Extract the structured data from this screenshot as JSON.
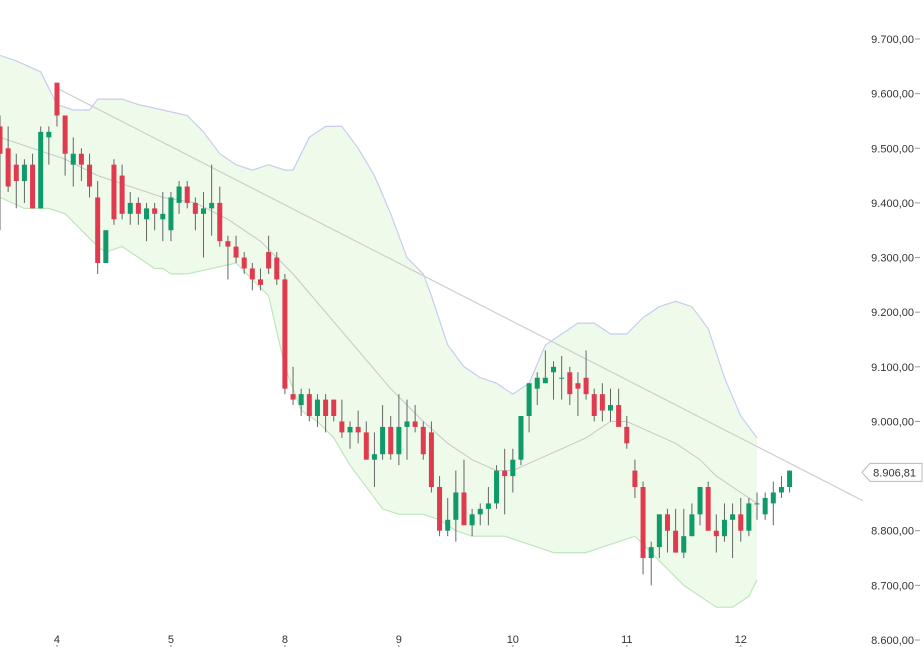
{
  "chart_data": {
    "type": "candlestick",
    "colors": {
      "up": "#109a6a",
      "down": "#e03a4e",
      "band_line": "#c8cdf0",
      "band_fill": "#eefaea",
      "band_edge": "#bfe6bf",
      "mid": "#c8c8c8",
      "trend": "#cfcfcf"
    },
    "y_axis": {
      "ylim": [
        8600,
        9750
      ],
      "ticks": [
        9700,
        9600,
        9500,
        9400,
        9300,
        9200,
        9100,
        9000,
        8900,
        8800,
        8700,
        8600
      ],
      "tick_labels": [
        "9.700,00",
        "9.600,00",
        "9.500,00",
        "9.400,00",
        "9.300,00",
        "9.200,00",
        "9.100,00",
        "9.000,00",
        "8.900,00",
        "8.800,00",
        "8.700,00",
        "8.600,00"
      ]
    },
    "x_axis": {
      "labels": [
        {
          "text": "4",
          "index": 7
        },
        {
          "text": "5",
          "index": 21
        },
        {
          "text": "8",
          "index": 35
        },
        {
          "text": "9",
          "index": 49
        },
        {
          "text": "10",
          "index": 63
        },
        {
          "text": "11",
          "index": 77
        },
        {
          "text": "12",
          "index": 91
        }
      ]
    },
    "last_price": {
      "value": 8906.81,
      "label": "8.906,81"
    },
    "candles": [
      [
        9540,
        9560,
        9350,
        9490
      ],
      [
        9500,
        9540,
        9420,
        9430
      ],
      [
        9470,
        9490,
        9390,
        9440
      ],
      [
        9440,
        9480,
        9400,
        9470
      ],
      [
        9470,
        9490,
        9390,
        9390
      ],
      [
        9390,
        9540,
        9390,
        9530
      ],
      [
        9520,
        9540,
        9470,
        9530
      ],
      [
        9620,
        9620,
        9540,
        9560
      ],
      [
        9560,
        9560,
        9450,
        9490
      ],
      [
        9470,
        9520,
        9430,
        9490
      ],
      [
        9490,
        9500,
        9440,
        9470
      ],
      [
        9470,
        9490,
        9410,
        9430
      ],
      [
        9410,
        9440,
        9270,
        9290
      ],
      [
        9290,
        9350,
        9290,
        9350
      ],
      [
        9470,
        9480,
        9360,
        9370
      ],
      [
        9450,
        9470,
        9370,
        9380
      ],
      [
        9380,
        9420,
        9360,
        9400
      ],
      [
        9400,
        9410,
        9360,
        9380
      ],
      [
        9370,
        9400,
        9330,
        9390
      ],
      [
        9390,
        9400,
        9350,
        9380
      ],
      [
        9370,
        9420,
        9330,
        9380
      ],
      [
        9350,
        9420,
        9330,
        9410
      ],
      [
        9400,
        9440,
        9380,
        9430
      ],
      [
        9430,
        9440,
        9390,
        9400
      ],
      [
        9400,
        9410,
        9350,
        9380
      ],
      [
        9380,
        9420,
        9300,
        9390
      ],
      [
        9390,
        9470,
        9340,
        9400
      ],
      [
        9400,
        9430,
        9320,
        9330
      ],
      [
        9330,
        9340,
        9260,
        9320
      ],
      [
        9320,
        9340,
        9290,
        9300
      ],
      [
        9300,
        9310,
        9270,
        9280
      ],
      [
        9280,
        9290,
        9240,
        9260
      ],
      [
        9260,
        9280,
        9240,
        9250
      ],
      [
        9310,
        9340,
        9270,
        9280
      ],
      [
        9300,
        9310,
        9250,
        9260
      ],
      [
        9260,
        9270,
        9050,
        9060
      ],
      [
        9050,
        9100,
        9030,
        9040
      ],
      [
        9030,
        9060,
        9010,
        9050
      ],
      [
        9050,
        9060,
        9000,
        9010
      ],
      [
        9010,
        9050,
        8990,
        9040
      ],
      [
        9040,
        9050,
        8980,
        9010
      ],
      [
        9040,
        9040,
        9000,
        9010
      ],
      [
        9000,
        9040,
        8970,
        8980
      ],
      [
        8980,
        9000,
        8950,
        8990
      ],
      [
        8990,
        9020,
        8960,
        8980
      ],
      [
        8980,
        9000,
        8940,
        8930
      ],
      [
        8930,
        8980,
        8880,
        8940
      ],
      [
        8940,
        9030,
        8930,
        8990
      ],
      [
        8990,
        9010,
        8930,
        8940
      ],
      [
        8940,
        9050,
        8920,
        8990
      ],
      [
        8990,
        9040,
        8930,
        9000
      ],
      [
        9000,
        9030,
        8980,
        8990
      ],
      [
        8990,
        9000,
        8930,
        8940
      ],
      [
        8980,
        9000,
        8870,
        8880
      ],
      [
        8880,
        8900,
        8790,
        8800
      ],
      [
        8800,
        8860,
        8790,
        8820
      ],
      [
        8820,
        8910,
        8780,
        8870
      ],
      [
        8870,
        8930,
        8820,
        8810
      ],
      [
        8810,
        8840,
        8790,
        8830
      ],
      [
        8830,
        8850,
        8810,
        8840
      ],
      [
        8840,
        8880,
        8810,
        8850
      ],
      [
        8850,
        8920,
        8840,
        8910
      ],
      [
        8910,
        8950,
        8830,
        8900
      ],
      [
        8900,
        8950,
        8870,
        8930
      ],
      [
        8930,
        9010,
        8920,
        9010
      ],
      [
        9010,
        9070,
        8980,
        9070
      ],
      [
        9060,
        9090,
        9030,
        9080
      ],
      [
        9070,
        9130,
        9070,
        9080
      ],
      [
        9090,
        9110,
        9040,
        9100
      ],
      [
        9080,
        9120,
        9040,
        9080
      ],
      [
        9090,
        9100,
        9030,
        9050
      ],
      [
        9070,
        9090,
        9010,
        9060
      ],
      [
        9080,
        9130,
        9040,
        9050
      ],
      [
        9050,
        9060,
        9000,
        9010
      ],
      [
        9050,
        9070,
        9000,
        9020
      ],
      [
        9020,
        9060,
        9000,
        9030
      ],
      [
        9030,
        9060,
        9000,
        8990
      ],
      [
        8990,
        9010,
        8950,
        8960
      ],
      [
        8910,
        8930,
        8860,
        8880
      ],
      [
        8880,
        8890,
        8720,
        8750
      ],
      [
        8750,
        8780,
        8700,
        8770
      ],
      [
        8770,
        8830,
        8750,
        8830
      ],
      [
        8830,
        8840,
        8760,
        8800
      ],
      [
        8800,
        8840,
        8760,
        8760
      ],
      [
        8760,
        8840,
        8750,
        8790
      ],
      [
        8790,
        8850,
        8790,
        8830
      ],
      [
        8830,
        8880,
        8810,
        8880
      ],
      [
        8880,
        8890,
        8800,
        8800
      ],
      [
        8800,
        8830,
        8760,
        8790
      ],
      [
        8790,
        8850,
        8780,
        8820
      ],
      [
        8820,
        8850,
        8750,
        8830
      ],
      [
        8830,
        8860,
        8780,
        8800
      ],
      [
        8800,
        8860,
        8790,
        8850
      ],
      [
        8850,
        8870,
        8820,
        8850
      ],
      [
        8830,
        8870,
        8820,
        8860
      ],
      [
        8850,
        8890,
        8810,
        8870
      ],
      [
        8870,
        8900,
        8860,
        8880
      ],
      [
        8880,
        8910,
        8870,
        8910
      ]
    ],
    "upper_band": [
      {
        "i": 0,
        "v": 9670
      },
      {
        "i": 2,
        "v": 9660
      },
      {
        "i": 5,
        "v": 9640
      },
      {
        "i": 6,
        "v": 9610
      },
      {
        "i": 7,
        "v": 9580
      },
      {
        "i": 9,
        "v": 9570
      },
      {
        "i": 11,
        "v": 9570
      },
      {
        "i": 12,
        "v": 9590
      },
      {
        "i": 15,
        "v": 9590
      },
      {
        "i": 17,
        "v": 9580
      },
      {
        "i": 20,
        "v": 9570
      },
      {
        "i": 23,
        "v": 9560
      },
      {
        "i": 25,
        "v": 9530
      },
      {
        "i": 27,
        "v": 9490
      },
      {
        "i": 29,
        "v": 9470
      },
      {
        "i": 31,
        "v": 9460
      },
      {
        "i": 33,
        "v": 9470
      },
      {
        "i": 35,
        "v": 9460
      },
      {
        "i": 36,
        "v": 9460
      },
      {
        "i": 37,
        "v": 9490
      },
      {
        "i": 38,
        "v": 9520
      },
      {
        "i": 40,
        "v": 9540
      },
      {
        "i": 42,
        "v": 9540
      },
      {
        "i": 44,
        "v": 9500
      },
      {
        "i": 46,
        "v": 9450
      },
      {
        "i": 48,
        "v": 9380
      },
      {
        "i": 50,
        "v": 9300
      },
      {
        "i": 52,
        "v": 9270
      },
      {
        "i": 53,
        "v": 9230
      },
      {
        "i": 55,
        "v": 9140
      },
      {
        "i": 57,
        "v": 9100
      },
      {
        "i": 59,
        "v": 9080
      },
      {
        "i": 61,
        "v": 9070
      },
      {
        "i": 63,
        "v": 9050
      },
      {
        "i": 65,
        "v": 9070
      },
      {
        "i": 67,
        "v": 9140
      },
      {
        "i": 69,
        "v": 9160
      },
      {
        "i": 71,
        "v": 9180
      },
      {
        "i": 73,
        "v": 9180
      },
      {
        "i": 75,
        "v": 9160
      },
      {
        "i": 77,
        "v": 9160
      },
      {
        "i": 79,
        "v": 9190
      },
      {
        "i": 81,
        "v": 9210
      },
      {
        "i": 83,
        "v": 9220
      },
      {
        "i": 85,
        "v": 9210
      },
      {
        "i": 87,
        "v": 9170
      },
      {
        "i": 89,
        "v": 9080
      },
      {
        "i": 91,
        "v": 9010
      },
      {
        "i": 93,
        "v": 8970
      }
    ],
    "lower_band": [
      {
        "i": 0,
        "v": 9410
      },
      {
        "i": 3,
        "v": 9390
      },
      {
        "i": 6,
        "v": 9390
      },
      {
        "i": 8,
        "v": 9380
      },
      {
        "i": 10,
        "v": 9350
      },
      {
        "i": 12,
        "v": 9320
      },
      {
        "i": 13,
        "v": 9310
      },
      {
        "i": 15,
        "v": 9320
      },
      {
        "i": 17,
        "v": 9300
      },
      {
        "i": 19,
        "v": 9280
      },
      {
        "i": 20,
        "v": 9280
      },
      {
        "i": 21,
        "v": 9270
      },
      {
        "i": 23,
        "v": 9270
      },
      {
        "i": 26,
        "v": 9280
      },
      {
        "i": 29,
        "v": 9290
      },
      {
        "i": 31,
        "v": 9260
      },
      {
        "i": 33,
        "v": 9230
      },
      {
        "i": 35,
        "v": 9100
      },
      {
        "i": 37,
        "v": 9020
      },
      {
        "i": 39,
        "v": 9000
      },
      {
        "i": 41,
        "v": 8970
      },
      {
        "i": 43,
        "v": 8920
      },
      {
        "i": 45,
        "v": 8880
      },
      {
        "i": 47,
        "v": 8840
      },
      {
        "i": 49,
        "v": 8830
      },
      {
        "i": 52,
        "v": 8830
      },
      {
        "i": 54,
        "v": 8820
      },
      {
        "i": 56,
        "v": 8800
      },
      {
        "i": 58,
        "v": 8790
      },
      {
        "i": 60,
        "v": 8790
      },
      {
        "i": 62,
        "v": 8790
      },
      {
        "i": 64,
        "v": 8780
      },
      {
        "i": 66,
        "v": 8770
      },
      {
        "i": 68,
        "v": 8760
      },
      {
        "i": 70,
        "v": 8760
      },
      {
        "i": 72,
        "v": 8760
      },
      {
        "i": 74,
        "v": 8770
      },
      {
        "i": 76,
        "v": 8780
      },
      {
        "i": 78,
        "v": 8790
      },
      {
        "i": 80,
        "v": 8760
      },
      {
        "i": 82,
        "v": 8730
      },
      {
        "i": 84,
        "v": 8700
      },
      {
        "i": 86,
        "v": 8680
      },
      {
        "i": 88,
        "v": 8660
      },
      {
        "i": 90,
        "v": 8660
      },
      {
        "i": 92,
        "v": 8680
      },
      {
        "i": 93,
        "v": 8710
      }
    ],
    "middle_band": [
      {
        "i": 0,
        "v": 9520
      },
      {
        "i": 4,
        "v": 9500
      },
      {
        "i": 8,
        "v": 9480
      },
      {
        "i": 12,
        "v": 9450
      },
      {
        "i": 16,
        "v": 9430
      },
      {
        "i": 20,
        "v": 9410
      },
      {
        "i": 24,
        "v": 9400
      },
      {
        "i": 28,
        "v": 9370
      },
      {
        "i": 32,
        "v": 9330
      },
      {
        "i": 36,
        "v": 9270
      },
      {
        "i": 40,
        "v": 9200
      },
      {
        "i": 44,
        "v": 9130
      },
      {
        "i": 48,
        "v": 9060
      },
      {
        "i": 52,
        "v": 9000
      },
      {
        "i": 55,
        "v": 8960
      },
      {
        "i": 58,
        "v": 8930
      },
      {
        "i": 61,
        "v": 8910
      },
      {
        "i": 63,
        "v": 8910
      },
      {
        "i": 66,
        "v": 8930
      },
      {
        "i": 69,
        "v": 8950
      },
      {
        "i": 72,
        "v": 8970
      },
      {
        "i": 75,
        "v": 9000
      },
      {
        "i": 77,
        "v": 9000
      },
      {
        "i": 80,
        "v": 8980
      },
      {
        "i": 83,
        "v": 8960
      },
      {
        "i": 86,
        "v": 8930
      },
      {
        "i": 88,
        "v": 8900
      },
      {
        "i": 90,
        "v": 8880
      },
      {
        "i": 92,
        "v": 8860
      },
      {
        "i": 93,
        "v": 8850
      }
    ],
    "trendline": {
      "start": {
        "i": 7,
        "v": 9610
      },
      "end": {
        "i": 106,
        "v": 8855
      }
    }
  }
}
